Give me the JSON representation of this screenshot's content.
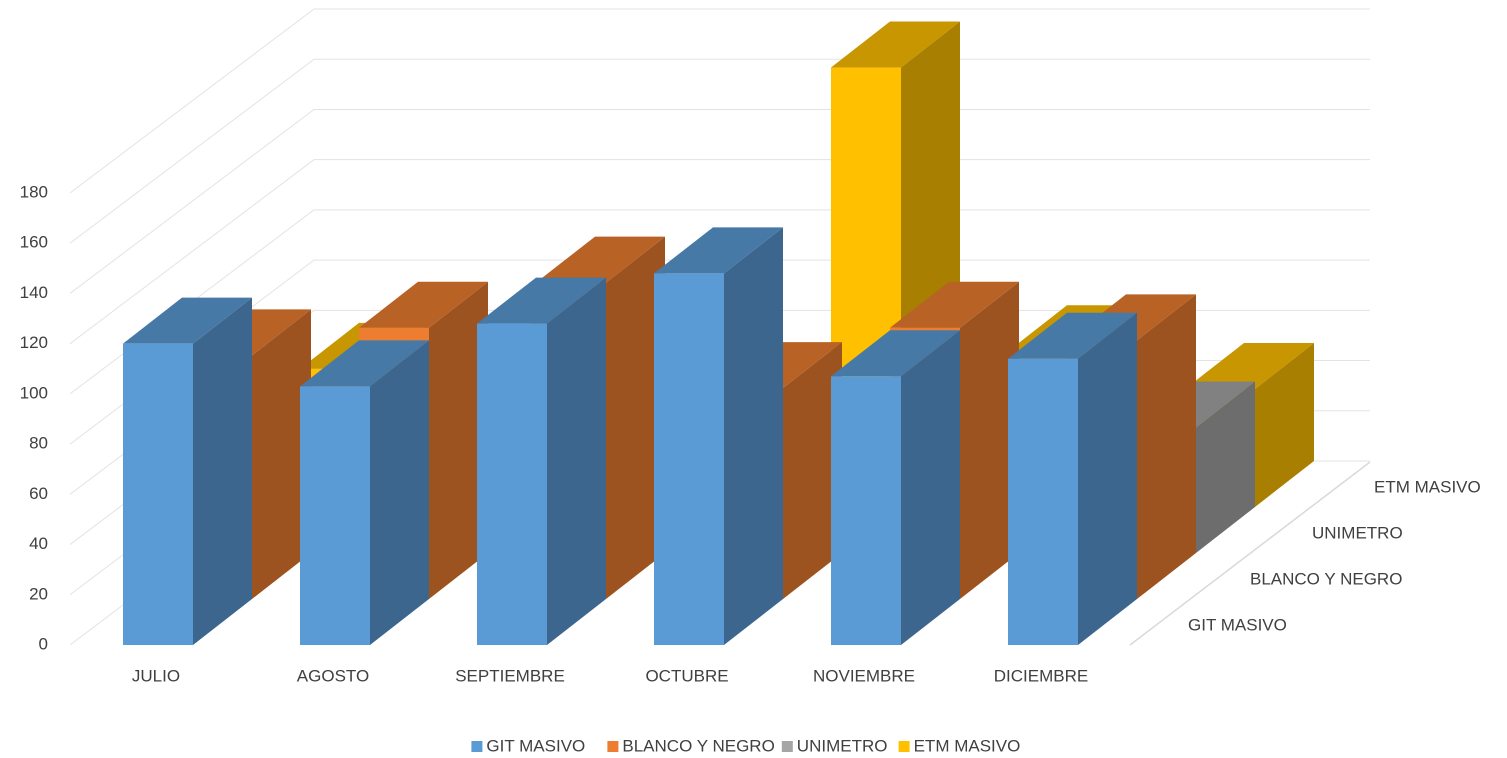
{
  "chart_data": {
    "type": "bar3d",
    "categories": [
      "JULIO",
      "AGOSTO",
      "SEPTIEMBRE",
      "OCTUBRE",
      "NOVIEMBRE",
      "DICIEMBRE"
    ],
    "series": [
      {
        "name": "GIT MASIVO",
        "color": "#5b9bd5",
        "values": [
          120,
          103,
          128,
          148,
          107,
          114
        ]
      },
      {
        "name": "BLANCO Y NEGRO",
        "color": "#ed7d31",
        "values": [
          97,
          108,
          126,
          84,
          108,
          103
        ]
      },
      {
        "name": "UNIMETRO",
        "color": "#a5a5a5",
        "values": [
          40,
          45,
          50,
          45,
          40,
          50
        ]
      },
      {
        "name": "ETM MASIVO",
        "color": "#ffc000",
        "values": [
          55,
          56,
          60,
          175,
          62,
          47
        ]
      }
    ],
    "ylim": [
      0,
      180
    ],
    "yticks": [
      0,
      20,
      40,
      60,
      80,
      100,
      120,
      140,
      160,
      180
    ],
    "grid": true,
    "legend": "bottom"
  }
}
